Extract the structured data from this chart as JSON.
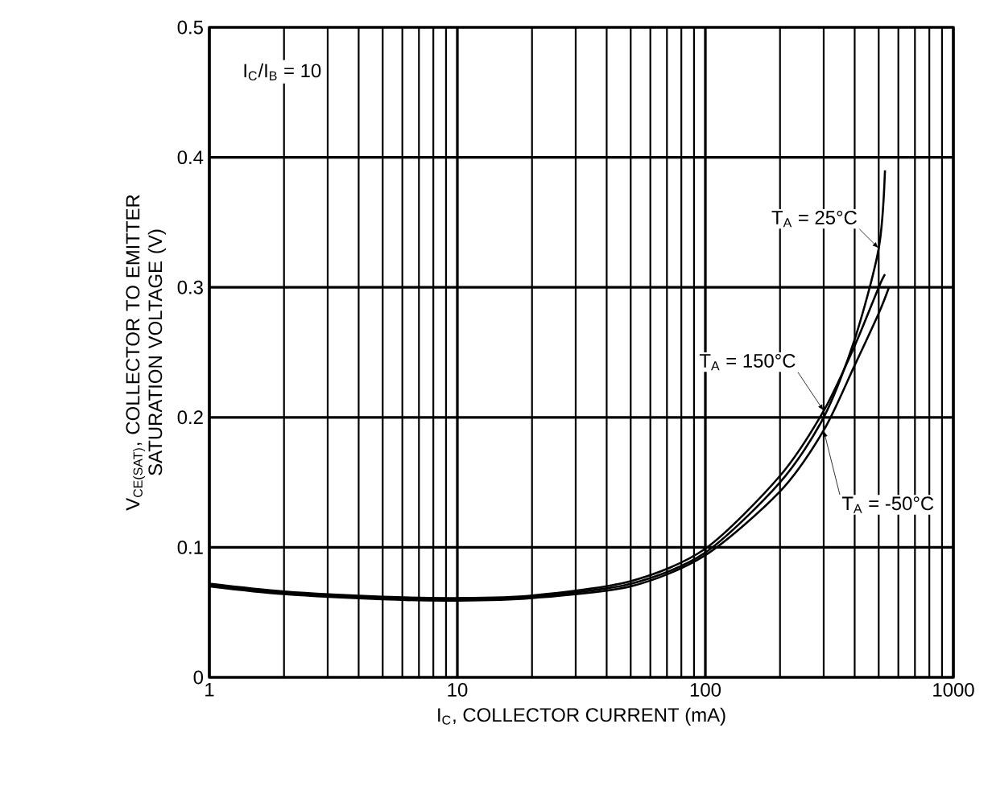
{
  "chart_data": {
    "type": "line",
    "xlabel": "I$_{C}$, COLLECTOR CURRENT (mA)",
    "ylabel": "V$_{CE(SAT)}$, COLLECTOR TO EMITTER SATURATION VOLTAGE (V)",
    "annotations": [
      "I$_{C}$/I$_{B}$ = 10"
    ],
    "log": "x",
    "grid": true,
    "legend": false,
    "marker": "none",
    "line_style": "solid",
    "xlim": [
      1,
      1000
    ],
    "ylim": [
      0,
      0.5
    ],
    "xticks": [
      1,
      10,
      100,
      1000
    ],
    "yticks": [
      0,
      0.1,
      0.2,
      0.3,
      0.4,
      0.5
    ],
    "series": [
      {
        "name": "T$_{A}$ = 25°C",
        "color": "#000000",
        "x": [
          1,
          2,
          5,
          10,
          20,
          50,
          100,
          200,
          300,
          400,
          500,
          530
        ],
        "values": [
          0.071,
          0.065,
          0.061,
          0.06,
          0.062,
          0.072,
          0.096,
          0.15,
          0.2,
          0.26,
          0.33,
          0.39
        ]
      },
      {
        "name": "T$_{A}$ = 150°C",
        "color": "#000000",
        "x": [
          1,
          2,
          5,
          10,
          20,
          50,
          100,
          200,
          300,
          400,
          500,
          530
        ],
        "values": [
          0.072,
          0.066,
          0.062,
          0.061,
          0.063,
          0.074,
          0.099,
          0.155,
          0.205,
          0.255,
          0.3,
          0.31
        ]
      },
      {
        "name": "T$_{A}$ = -50°C",
        "color": "#000000",
        "x": [
          1,
          2,
          5,
          10,
          20,
          50,
          100,
          200,
          300,
          400,
          500,
          550
        ],
        "values": [
          0.07,
          0.064,
          0.06,
          0.059,
          0.061,
          0.07,
          0.094,
          0.143,
          0.19,
          0.24,
          0.28,
          0.3
        ]
      }
    ]
  }
}
